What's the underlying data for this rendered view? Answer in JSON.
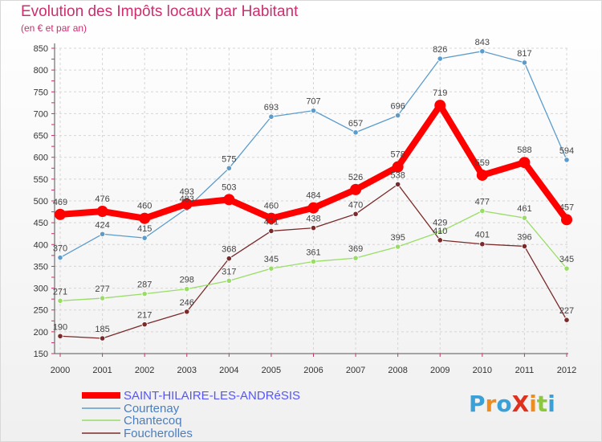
{
  "title": "Evolution des Impôts locaux par Habitant",
  "subtitle": "(en € et par an)",
  "brand": "ProXiti",
  "chart_data": {
    "type": "line",
    "x": [
      "2000",
      "2001",
      "2002",
      "2003",
      "2004",
      "2005",
      "2006",
      "2007",
      "2008",
      "2009",
      "2010",
      "2011",
      "2012"
    ],
    "ylim": [
      150,
      850
    ],
    "yticks": [
      150,
      200,
      250,
      300,
      350,
      400,
      450,
      500,
      550,
      600,
      650,
      700,
      750,
      800,
      850
    ],
    "grid": true,
    "legend_position": "bottom-left",
    "series": [
      {
        "name": "SAINT-HILAIRE-LES-ANDRéSIS",
        "color": "#ff0000",
        "values": [
          469,
          476,
          460,
          493,
          503,
          460,
          484,
          526,
          578,
          719,
          559,
          588,
          457
        ]
      },
      {
        "name": "Courtenay",
        "color": "#5c9ccc",
        "values": [
          370,
          424,
          415,
          483,
          575,
          693,
          707,
          657,
          696,
          826,
          843,
          817,
          594
        ]
      },
      {
        "name": "Chantecoq",
        "color": "#99dd66",
        "values": [
          271,
          277,
          287,
          298,
          317,
          345,
          361,
          369,
          395,
          429,
          477,
          461,
          345
        ]
      },
      {
        "name": "Foucherolles",
        "color": "#7a2a2a",
        "values": [
          190,
          185,
          217,
          246,
          368,
          431,
          438,
          470,
          538,
          410,
          401,
          396,
          227
        ]
      }
    ]
  }
}
